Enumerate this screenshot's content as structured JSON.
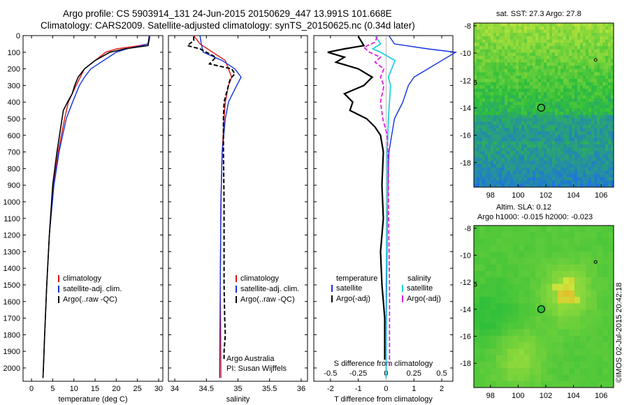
{
  "header": {
    "line1": "Argo profile: CS 5903914_131 24-Jun-2015 20150629_447 13.991S 101.668E",
    "line2": "Climatology: CARS2009. Satellite-adjusted climatology: synTS_20150625.nc (0.34d later)"
  },
  "maps": {
    "sst_title": "sat. SST: 27.3 Argo: 27.8",
    "sla_title1": "Altim. SLA: 0.12",
    "sla_title2": "Argo h1000: -0.015 h2000: -0.023",
    "lon_ticks": [
      "98",
      "100",
      "102",
      "104",
      "106"
    ],
    "lat_ticks": [
      "-8",
      "-10",
      "-12",
      "-14",
      "-16",
      "-18"
    ],
    "argo_position": {
      "lon": 101.668,
      "lat": -13.991
    },
    "other_floats": [
      {
        "lon": 105.6,
        "lat": -10.5
      },
      {
        "lon": 96.9,
        "lat": -12.2
      }
    ],
    "colors": {
      "sst_low": "#1e6ee8",
      "sst_mid": "#2fbf3a",
      "sst_high": "#c8e83c",
      "sla_high": "#f2a020",
      "sla_mid": "#c8e83c"
    }
  },
  "footer": "©IMOS 02-Jul-2015 20:42:18",
  "colors": {
    "climatology": "#e01010",
    "satellite": "#1030e0",
    "argo": "#000000",
    "sat_sal_diff": "#20d0e0",
    "argo_sal_diff": "#e020e0"
  },
  "chart_data": [
    {
      "type": "line",
      "xlabel": "temperature (deg C)",
      "ylabel": "",
      "xlim": [
        -2,
        31
      ],
      "ylim": [
        2080,
        0
      ],
      "x_ticks": [
        "0",
        "5",
        "10",
        "15",
        "20",
        "25",
        "30"
      ],
      "y_ticks": [
        "0",
        "100",
        "200",
        "300",
        "400",
        "500",
        "600",
        "700",
        "800",
        "900",
        "1000",
        "1100",
        "1200",
        "1300",
        "1400",
        "1500",
        "1600",
        "1700",
        "1800",
        "1900",
        "2000"
      ],
      "legend": [
        "climatology",
        "satellite-adj. clim.",
        "Argo(..raw -QC)"
      ],
      "series": [
        {
          "name": "climatology",
          "depth": [
            0,
            50,
            60,
            80,
            100,
            150,
            200,
            250,
            300,
            400,
            500,
            700,
            900,
            1200,
            1500,
            1800,
            2000,
            2060
          ],
          "values": [
            27.8,
            27.5,
            25.5,
            20,
            17.5,
            15,
            12.5,
            11.5,
            10.5,
            8.7,
            7.8,
            6.3,
            5.2,
            4.2,
            3.6,
            3.1,
            2.8,
            2.7
          ]
        },
        {
          "name": "satellite-adj. clim.",
          "depth": [
            0,
            50,
            60,
            80,
            100,
            150,
            200,
            250,
            300,
            400,
            500,
            700,
            900,
            1200,
            1500,
            1800,
            2000,
            2060
          ],
          "values": [
            27.8,
            27.5,
            26,
            22.5,
            20,
            17,
            14,
            12.5,
            11.3,
            9.7,
            8.2,
            6.5,
            5.3,
            4.2,
            3.6,
            3.1,
            2.8,
            2.7
          ]
        },
        {
          "name": "Argo(..raw -QC)",
          "depth": [
            5,
            60,
            80,
            100,
            150,
            200,
            250,
            300,
            350,
            400,
            450,
            500,
            700,
            900,
            1200,
            1500,
            1800,
            2000,
            2060
          ],
          "values": [
            27.9,
            27.5,
            22,
            18.5,
            15,
            12.5,
            11,
            10.2,
            9.6,
            8.5,
            7.5,
            7.2,
            6.0,
            5.0,
            4.2,
            3.6,
            3.1,
            2.8,
            2.7
          ]
        }
      ]
    },
    {
      "type": "line",
      "xlabel": "salinity",
      "xlim": [
        33.9,
        36.1
      ],
      "ylim": [
        2080,
        0
      ],
      "x_ticks": [
        "34",
        "34.5",
        "35",
        "35.5",
        "36"
      ],
      "legend": [
        "climatology",
        "satellite-adj. clim.",
        "Argo(..raw -QC)"
      ],
      "annotations": [
        "Argo Australia",
        "PI: Susan Wijffels"
      ],
      "series": [
        {
          "name": "climatology",
          "depth": [
            0,
            50,
            100,
            150,
            200,
            250,
            300,
            400,
            500,
            700,
            1000,
            1500,
            2000,
            2060
          ],
          "values": [
            34.3,
            34.4,
            34.6,
            34.8,
            34.85,
            34.9,
            34.85,
            34.8,
            34.78,
            34.75,
            34.73,
            34.72,
            34.73,
            34.73
          ]
        },
        {
          "name": "satellite-adj. clim.",
          "depth": [
            0,
            50,
            100,
            150,
            200,
            250,
            300,
            400,
            500,
            700,
            1000,
            1500,
            2000,
            2060
          ],
          "values": [
            34.4,
            34.42,
            34.45,
            34.75,
            34.95,
            35.05,
            34.98,
            34.85,
            34.8,
            34.75,
            34.73,
            34.72,
            34.71,
            34.71
          ]
        },
        {
          "name": "Argo(..raw -QC)",
          "depth": [
            5,
            30,
            60,
            80,
            100,
            130,
            150,
            170,
            200,
            230,
            260,
            300,
            400,
            500,
            700,
            1000,
            1500,
            1700,
            1800,
            1900,
            1950
          ],
          "values": [
            34.3,
            34.3,
            34.2,
            34.4,
            34.5,
            34.65,
            34.6,
            34.55,
            34.9,
            34.95,
            34.88,
            34.85,
            34.78,
            34.77,
            34.77,
            34.78,
            34.78,
            34.79,
            34.8,
            34.78,
            34.78
          ]
        }
      ]
    },
    {
      "type": "line",
      "xlabel": "T difference from climatology",
      "xlabel_top": "S difference from climatology",
      "xlim": [
        -2.6,
        2.4
      ],
      "ylim": [
        2080,
        0
      ],
      "x_ticks": [
        "-2",
        "-1",
        "0",
        "1",
        "2"
      ],
      "x_ticks_top": [
        "-0.5",
        "-0.25",
        "0",
        "0.25",
        "0.5"
      ],
      "legend_temperature": {
        "title": "temperature",
        "items": [
          "satellite",
          "Argo(-adj)"
        ]
      },
      "legend_salinity": {
        "title": "salinity",
        "items": [
          "satellite",
          "Argo(-adj)"
        ]
      },
      "series": [
        {
          "name": "satellite",
          "depth": [
            0,
            50,
            80,
            100,
            150,
            200,
            250,
            300,
            400,
            500,
            700,
            1000,
            1500,
            2000,
            2060
          ],
          "values": [
            0.1,
            0.3,
            1.5,
            2.5,
            2.0,
            1.5,
            1.0,
            0.8,
            0.6,
            0.3,
            0.1,
            0.05,
            0.02,
            0.0,
            0.0
          ]
        },
        {
          "name": "Argo(-adj)",
          "depth": [
            5,
            60,
            80,
            100,
            130,
            160,
            200,
            250,
            300,
            350,
            400,
            450,
            500,
            550,
            600,
            700,
            900,
            1100,
            1300,
            1500,
            1700,
            1800,
            1900,
            1950
          ],
          "values": [
            -1.0,
            -0.8,
            -1.5,
            -2.1,
            -1.5,
            -1.8,
            -1.0,
            -0.5,
            -0.8,
            -1.5,
            -1.2,
            -1.3,
            -0.7,
            -0.4,
            -0.2,
            -0.1,
            -0.15,
            -0.1,
            -0.2,
            -0.15,
            -0.05,
            -0.05,
            -0.05,
            -0.05
          ]
        }
      ],
      "salinity_series": [
        {
          "name": "satellite",
          "depth": [
            0,
            50,
            80,
            100,
            150,
            200,
            250,
            300,
            400,
            500,
            700,
            1000,
            1500,
            2000,
            2060
          ],
          "values": [
            -0.1,
            -0.05,
            -0.12,
            -0.05,
            0.08,
            0.05,
            0.02,
            0.04,
            0.03,
            0.02,
            0.01,
            0.01,
            0.0,
            0.0,
            0.0
          ]
        },
        {
          "name": "Argo(-adj)",
          "depth": [
            5,
            40,
            70,
            100,
            130,
            160,
            200,
            250,
            300,
            400,
            500,
            600,
            800,
            1000,
            1500,
            2000
          ],
          "values": [
            -0.08,
            -0.1,
            -0.2,
            -0.15,
            -0.05,
            -0.1,
            -0.02,
            -0.05,
            -0.02,
            -0.05,
            -0.03,
            0.01,
            0.02,
            0.02,
            0.03,
            0.03
          ]
        }
      ]
    }
  ]
}
